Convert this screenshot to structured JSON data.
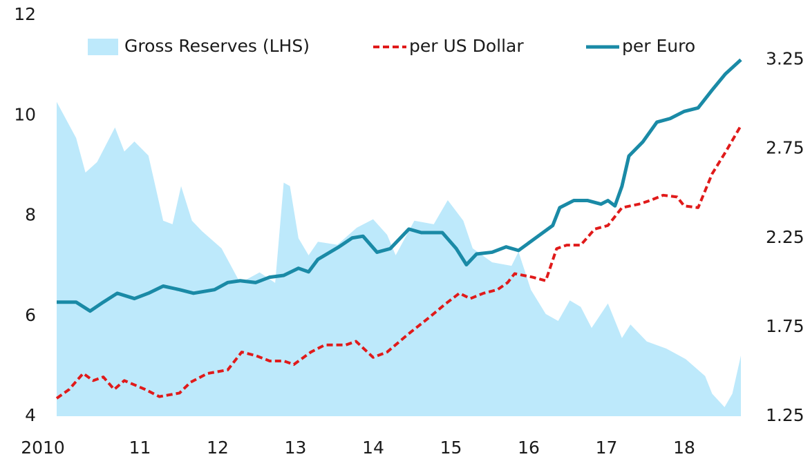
{
  "chart_data": {
    "type": "area_line",
    "xlim": [
      2010,
      2018.8
    ],
    "xticks": [
      2010,
      {
        "value": 2011,
        "label": "11"
      },
      {
        "value": 2012,
        "label": "12"
      },
      {
        "value": 2013,
        "label": "13"
      },
      {
        "value": 2014,
        "label": "14"
      },
      {
        "value": 2015,
        "label": "15"
      },
      {
        "value": 2016,
        "label": "16"
      },
      {
        "value": 2017,
        "label": "17"
      },
      {
        "value": 2018,
        "label": "18"
      }
    ],
    "ylim": [
      4,
      12
    ],
    "yticks": [
      4,
      6,
      8,
      10,
      12
    ],
    "y2lim": [
      1.25,
      3.5
    ],
    "y2ticks": [
      1.25,
      1.75,
      2.25,
      2.75,
      3.25
    ],
    "series": [
      {
        "name": "Gross Reserves (LHS)",
        "kind": "area",
        "color": "#bde9fb",
        "x": [
          2010.0,
          2010.25,
          2010.37,
          2010.52,
          2010.75,
          2010.87,
          2011.0,
          2011.18,
          2011.37,
          2011.49,
          2011.6,
          2011.74,
          2011.87,
          2012.12,
          2012.36,
          2012.61,
          2012.81,
          2012.92,
          2013.0,
          2013.11,
          2013.24,
          2013.36,
          2013.61,
          2013.86,
          2014.07,
          2014.25,
          2014.36,
          2014.6,
          2014.85,
          2015.03,
          2015.23,
          2015.35,
          2015.6,
          2015.85,
          2015.94,
          2016.1,
          2016.29,
          2016.45,
          2016.6,
          2016.74,
          2016.88,
          2017.09,
          2017.27,
          2017.38,
          2017.59,
          2017.84,
          2018.09,
          2018.34,
          2018.43,
          2018.59,
          2018.69,
          2018.8
        ],
        "values": [
          10.27,
          9.55,
          8.86,
          9.07,
          9.76,
          9.28,
          9.48,
          9.2,
          7.9,
          7.83,
          8.59,
          7.9,
          7.69,
          7.35,
          6.66,
          6.87,
          6.66,
          8.66,
          8.59,
          7.55,
          7.21,
          7.48,
          7.42,
          7.76,
          7.93,
          7.62,
          7.21,
          7.9,
          7.83,
          8.31,
          7.9,
          7.35,
          7.07,
          7.0,
          7.28,
          6.52,
          6.04,
          5.9,
          6.31,
          6.18,
          5.76,
          6.25,
          5.56,
          5.83,
          5.49,
          5.35,
          5.14,
          4.8,
          4.45,
          4.18,
          4.45,
          5.21
        ]
      },
      {
        "name": "per US Dollar",
        "kind": "dashed",
        "color": "#e01a1a",
        "axis": "y2",
        "x": [
          2010.0,
          2010.16,
          2010.34,
          2010.47,
          2010.6,
          2010.74,
          2010.87,
          2011.14,
          2011.32,
          2011.58,
          2011.72,
          2011.94,
          2012.2,
          2012.38,
          2012.56,
          2012.74,
          2012.92,
          2013.05,
          2013.27,
          2013.45,
          2013.72,
          2013.85,
          2014.07,
          2014.25,
          2014.52,
          2014.78,
          2015.0,
          2015.18,
          2015.32,
          2015.49,
          2015.67,
          2015.8,
          2015.89,
          2016.12,
          2016.29,
          2016.43,
          2016.56,
          2016.74,
          2016.92,
          2017.09,
          2017.27,
          2017.49,
          2017.63,
          2017.8,
          2017.98,
          2018.07,
          2018.25,
          2018.43,
          2018.6,
          2018.8
        ],
        "values": [
          1.35,
          1.4,
          1.49,
          1.45,
          1.47,
          1.4,
          1.45,
          1.4,
          1.36,
          1.38,
          1.44,
          1.49,
          1.51,
          1.61,
          1.59,
          1.56,
          1.56,
          1.54,
          1.61,
          1.65,
          1.65,
          1.67,
          1.58,
          1.61,
          1.71,
          1.8,
          1.88,
          1.94,
          1.91,
          1.94,
          1.96,
          2.0,
          2.05,
          2.03,
          2.01,
          2.19,
          2.21,
          2.21,
          2.3,
          2.32,
          2.42,
          2.44,
          2.46,
          2.49,
          2.48,
          2.43,
          2.42,
          2.61,
          2.73,
          2.88
        ]
      },
      {
        "name": "per Euro",
        "kind": "solid",
        "color": "#1a8aa6",
        "axis": "y2",
        "x": [
          2010.0,
          2010.25,
          2010.43,
          2010.6,
          2010.78,
          2011.0,
          2011.18,
          2011.37,
          2011.58,
          2011.76,
          2012.03,
          2012.2,
          2012.36,
          2012.56,
          2012.74,
          2012.92,
          2013.11,
          2013.24,
          2013.36,
          2013.63,
          2013.8,
          2013.94,
          2014.12,
          2014.29,
          2014.53,
          2014.69,
          2014.96,
          2015.14,
          2015.27,
          2015.4,
          2015.6,
          2015.78,
          2015.94,
          2016.16,
          2016.38,
          2016.47,
          2016.65,
          2016.83,
          2017.0,
          2017.09,
          2017.18,
          2017.27,
          2017.36,
          2017.54,
          2017.72,
          2017.89,
          2018.07,
          2018.25,
          2018.43,
          2018.6,
          2018.8
        ],
        "values": [
          1.89,
          1.89,
          1.84,
          1.89,
          1.94,
          1.91,
          1.94,
          1.98,
          1.96,
          1.94,
          1.96,
          2.0,
          2.01,
          2.0,
          2.03,
          2.04,
          2.08,
          2.06,
          2.13,
          2.2,
          2.25,
          2.26,
          2.17,
          2.19,
          2.3,
          2.28,
          2.28,
          2.19,
          2.1,
          2.16,
          2.17,
          2.2,
          2.18,
          2.25,
          2.32,
          2.42,
          2.46,
          2.46,
          2.44,
          2.46,
          2.43,
          2.54,
          2.71,
          2.79,
          2.9,
          2.92,
          2.96,
          2.98,
          3.08,
          3.17,
          3.25
        ]
      }
    ]
  }
}
